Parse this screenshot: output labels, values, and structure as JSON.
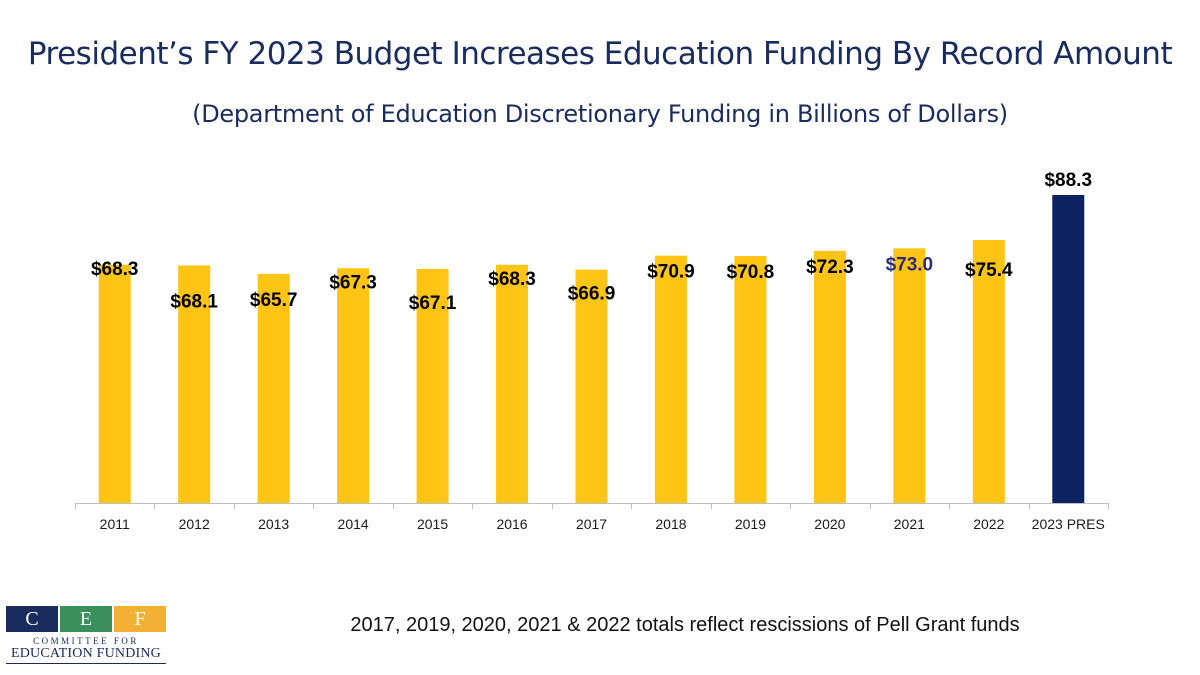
{
  "chart_data": {
    "type": "bar",
    "title": "President’s FY 2023 Budget Increases Education Funding By Record Amount",
    "subtitle": "(Department of Education Discretionary Funding in Billions of Dollars)",
    "categories": [
      "2011",
      "2012",
      "2013",
      "2014",
      "2015",
      "2016",
      "2017",
      "2018",
      "2019",
      "2020",
      "2021",
      "2022",
      "2023 PRES"
    ],
    "values": [
      68.3,
      68.1,
      65.7,
      67.3,
      67.1,
      68.3,
      66.9,
      70.9,
      70.8,
      72.3,
      73.0,
      75.4,
      88.3
    ],
    "data_labels": [
      "$68.3",
      "$68.1",
      "$65.7",
      "$67.3",
      "$67.1",
      "$68.3",
      "$66.9",
      "$70.9",
      "$70.8",
      "$72.3",
      "$73.0",
      "$75.4",
      "$88.3"
    ],
    "bar_colors": [
      "#ffc414",
      "#ffc414",
      "#ffc414",
      "#ffc414",
      "#ffc414",
      "#ffc414",
      "#ffc414",
      "#ffc414",
      "#ffc414",
      "#ffc414",
      "#ffc414",
      "#ffc414",
      "#0d2260"
    ],
    "label_colors": [
      "#000000",
      "#000000",
      "#000000",
      "#000000",
      "#000000",
      "#000000",
      "#000000",
      "#000000",
      "#000000",
      "#000000",
      "#2b2b7a",
      "#000000",
      "#000000"
    ],
    "xlabel": "",
    "ylabel": "",
    "ylim": [
      0,
      88.3
    ],
    "grid": false,
    "legend": "none"
  },
  "footnote": "2017, 2019, 2020, 2021 & 2022 totals reflect rescissions of Pell Grant funds",
  "logo": {
    "letters": [
      "C",
      "E",
      "F"
    ],
    "colors": [
      "#1a2b5e",
      "#3b8f5a",
      "#f2b134"
    ],
    "line1": "COMMITTEE FOR",
    "line2": "EDUCATION FUNDING"
  }
}
